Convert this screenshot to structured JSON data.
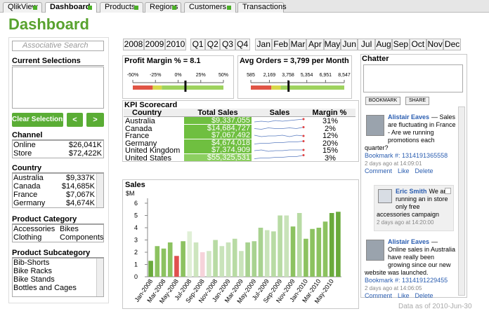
{
  "tabs": [
    "QlikView",
    "Dashboard",
    "Products",
    "Regions",
    "Customers",
    "Transactions"
  ],
  "header": {
    "title": "Dashboard"
  },
  "search": {
    "placeholder": "Associative Search"
  },
  "current_selections": {
    "title": "Current Selections"
  },
  "buttons": {
    "clear": "Clear Selections",
    "prev": "<",
    "next": ">"
  },
  "channel": {
    "title": "Channel",
    "rows": [
      [
        "Online",
        "$26,041K"
      ],
      [
        "Store",
        "$72,422K"
      ]
    ]
  },
  "country": {
    "title": "Country",
    "rows": [
      [
        "Australia",
        "$9,337K"
      ],
      [
        "Canada",
        "$14,685K"
      ],
      [
        "France",
        "$7,067K"
      ],
      [
        "Germany",
        "$4,674K"
      ]
    ]
  },
  "product_category": {
    "title": "Product Category",
    "items": [
      "Accessories",
      "Bikes",
      "Clothing",
      "Components"
    ]
  },
  "product_subcategory": {
    "title": "Product Subcategory",
    "items": [
      "Bib-Shorts",
      "Bike Racks",
      "Bike Stands",
      "Bottles and Cages"
    ]
  },
  "years": [
    "2008",
    "2009",
    "2010"
  ],
  "quarters": [
    "Q1",
    "Q2",
    "Q3",
    "Q4"
  ],
  "months": [
    "Jan",
    "Feb",
    "Mar",
    "Apr",
    "May",
    "Jun",
    "Jul",
    "Aug",
    "Sep",
    "Oct",
    "Nov",
    "Dec"
  ],
  "gauges": [
    {
      "title": "Profit Margin % = 8.1",
      "value": 8.1,
      "lim": [
        -50,
        50
      ],
      "ticks": [
        {
          "value": -50,
          "label": "-50%"
        },
        {
          "value": -25,
          "label": "-25%"
        },
        {
          "value": 0,
          "label": "0%"
        },
        {
          "value": 25,
          "label": "25%"
        },
        {
          "value": 50,
          "label": "50%"
        }
      ]
    },
    {
      "title": "Avg Orders = 3,799 per Month",
      "value": 3799,
      "lim": [
        585,
        8547
      ],
      "ticks": [
        585,
        {
          "value": 2169,
          "label": "2,169"
        },
        {
          "value": 3758,
          "label": "3,758"
        },
        {
          "value": 5354,
          "label": "5,354"
        },
        {
          "value": 6951,
          "label": "6,951"
        },
        {
          "value": 8547,
          "label": "8,547"
        }
      ]
    }
  ],
  "kpi": {
    "title": "KPI Scorecard",
    "columns": [
      "Country",
      "Total Sales",
      "Sales",
      "Margin %"
    ],
    "rows": [
      [
        "Australia",
        "$9,337,055",
        "31%"
      ],
      [
        "Canada",
        "$14,684,727",
        "2%"
      ],
      [
        "France",
        "$7,067,492",
        "12%"
      ],
      [
        "Germany",
        "$4,674,018",
        "20%"
      ],
      [
        "United Kingdom",
        "$7,374,909",
        "15%"
      ],
      [
        "United States",
        "$55,325,531",
        "3%"
      ]
    ]
  },
  "chatter": {
    "title": "Chatter",
    "buttons": [
      "BOOKMARK",
      "SHARE"
    ],
    "posts": [
      {
        "author": "Alistair Eaves",
        "text": "— Sales are fluctuating in France - Are we running promotions each quarter?",
        "bookmark": "Bookmark #: 1314191365558",
        "time": "2 days ago at 14:09:01",
        "actions": [
          "Comment",
          "Like",
          "Delete"
        ]
      },
      {
        "author": "Eric Smith",
        "text": "We are running an in store only free accessories campaign",
        "time": "2 days ago at 14:20:00"
      },
      {
        "author": "Alistair Eaves",
        "text": "— Online sales in Australia have really been growing since our new website was launched.",
        "bookmark": "Bookmark #: 1314191229455",
        "time": "2 days ago at 14:06:05",
        "actions": [
          "Comment",
          "Like",
          "Delete"
        ]
      }
    ]
  },
  "footer": "Data as of 2010-Jun-30",
  "chart_data": {
    "type": "bar",
    "title": "Sales",
    "y_label": "$M",
    "categories": [
      "Jan-2008",
      null,
      "Mar-2008",
      null,
      "May-2008",
      null,
      "Jul-2008",
      null,
      "Sep-2008",
      null,
      "Nov-2008",
      null,
      "Jan-2009",
      null,
      "Mar-2009",
      null,
      "May-2009",
      null,
      "Jul-2009",
      null,
      "Sep-2009",
      null,
      "Nov-2009",
      null,
      "Jan-2010",
      null,
      "Mar-2010",
      null,
      "May-2010",
      null
    ],
    "values": [
      1.3,
      2.5,
      2.3,
      2.8,
      1.7,
      2.9,
      3.7,
      2.8,
      2.0,
      2.1,
      3.0,
      2.5,
      2.8,
      3.1,
      2.1,
      2.8,
      2.9,
      4.0,
      3.8,
      3.7,
      5.0,
      5.0,
      4.1,
      5.2,
      3.1,
      3.9,
      4.0,
      4.5,
      5.2,
      5.3
    ],
    "colors": [
      "#6aaa3c",
      "#8cc260",
      "#8cc260",
      "#8cc260",
      "#e05050",
      "#8cc260",
      "#e0efd6",
      "#cde5be",
      "#f6d3da",
      "#d3e8c7",
      "#b8dba4",
      "#c9e3ba",
      "#c9e3ba",
      "#b8dba4",
      "#c9e3ba",
      "#a8d290",
      "#a8d290",
      "#a8d290",
      "#c9e3ba",
      "#b8dba4",
      "#b8dba4",
      "#c9e3ba",
      "#8cc260",
      "#b8dba4",
      "#8cc260",
      "#8cc260",
      "#8cc260",
      "#8cc260",
      "#6aaa3c",
      "#6aaa3c"
    ],
    "ylim": [
      0,
      6.4
    ],
    "yticks": [
      0,
      1,
      2,
      3,
      4,
      5,
      6
    ]
  }
}
